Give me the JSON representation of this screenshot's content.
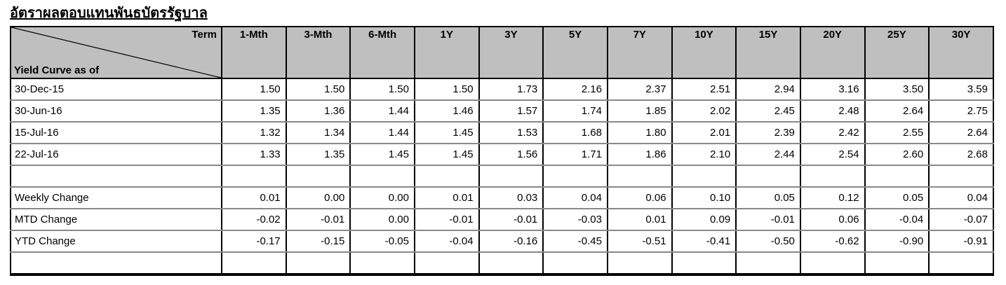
{
  "title": "อัตราผลตอบแทนพันธบัตรรัฐบาล",
  "table": {
    "corner": {
      "top_right": "Term",
      "bottom_left": "Yield Curve as of"
    },
    "columns": [
      "1-Mth",
      "3-Mth",
      "6-Mth",
      "1Y",
      "3Y",
      "5Y",
      "7Y",
      "10Y",
      "15Y",
      "20Y",
      "25Y",
      "30Y"
    ],
    "rows": [
      {
        "label": "30-Dec-15",
        "values": [
          "1.50",
          "1.50",
          "1.50",
          "1.50",
          "1.73",
          "2.16",
          "2.37",
          "2.51",
          "2.94",
          "3.16",
          "3.50",
          "3.59"
        ]
      },
      {
        "label": "30-Jun-16",
        "values": [
          "1.35",
          "1.36",
          "1.44",
          "1.46",
          "1.57",
          "1.74",
          "1.85",
          "2.02",
          "2.45",
          "2.48",
          "2.64",
          "2.75"
        ]
      },
      {
        "label": "15-Jul-16",
        "values": [
          "1.32",
          "1.34",
          "1.44",
          "1.45",
          "1.53",
          "1.68",
          "1.80",
          "2.01",
          "2.39",
          "2.42",
          "2.55",
          "2.64"
        ]
      },
      {
        "label": "22-Jul-16",
        "values": [
          "1.33",
          "1.35",
          "1.45",
          "1.45",
          "1.56",
          "1.71",
          "1.86",
          "2.10",
          "2.44",
          "2.54",
          "2.60",
          "2.68"
        ]
      },
      {
        "label": "",
        "values": [
          "",
          "",
          "",
          "",
          "",
          "",
          "",
          "",
          "",
          "",
          "",
          ""
        ]
      },
      {
        "label": "Weekly Change",
        "values": [
          "0.01",
          "0.00",
          "0.00",
          "0.01",
          "0.03",
          "0.04",
          "0.06",
          "0.10",
          "0.05",
          "0.12",
          "0.05",
          "0.04"
        ]
      },
      {
        "label": "MTD Change",
        "values": [
          "-0.02",
          "-0.01",
          "0.00",
          "-0.01",
          "-0.01",
          "-0.03",
          "0.01",
          "0.09",
          "-0.01",
          "0.06",
          "-0.04",
          "-0.07"
        ]
      },
      {
        "label": "YTD Change",
        "values": [
          "-0.17",
          "-0.15",
          "-0.05",
          "-0.04",
          "-0.16",
          "-0.45",
          "-0.51",
          "-0.41",
          "-0.50",
          "-0.62",
          "-0.90",
          "-0.91"
        ]
      },
      {
        "label": "",
        "values": [
          "",
          "",
          "",
          "",
          "",
          "",
          "",
          "",
          "",
          "",
          "",
          ""
        ]
      }
    ]
  },
  "colors": {
    "header_fill": "#bfbfbf",
    "grid_vertical": "#000000",
    "grid_horizontal": "#888888",
    "text": "#000000",
    "background": "#ffffff"
  }
}
